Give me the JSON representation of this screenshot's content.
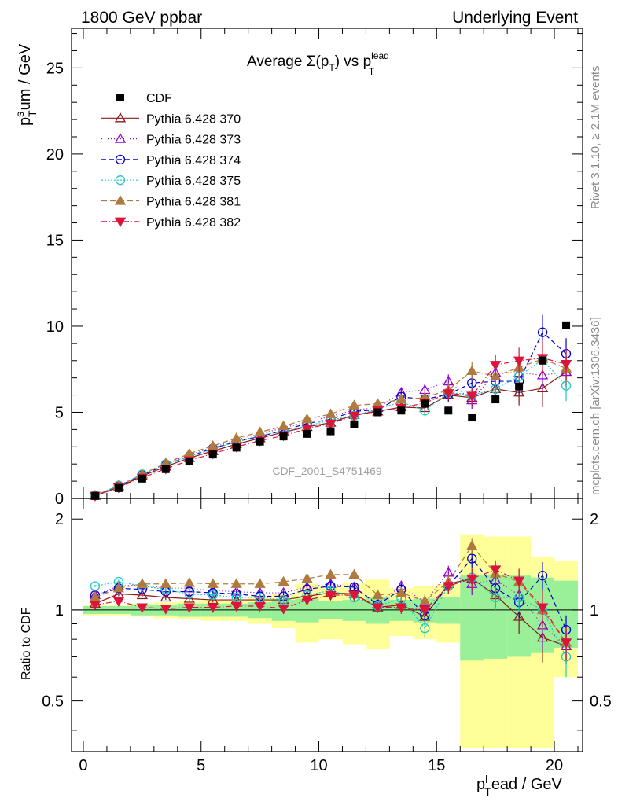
{
  "header": {
    "left": "1800 GeV ppbar",
    "right": "Underlying Event",
    "side_rivet": "Rivet 3.1.10, ≥ 2.1M events",
    "side_mcplots": "mcplots.cern.ch [arXiv:1306.3436]",
    "watermark": "CDF_2001_S4751469"
  },
  "colors": {
    "cdf": "#000000",
    "p370": "#8b1a1a",
    "p373": "#9400d3",
    "p374": "#0000cd",
    "p375": "#20c9c0",
    "p381": "#b07a3e",
    "p382": "#dc143c",
    "band_yellow": "#ffff99",
    "band_green": "#99f099"
  },
  "chart_data": [
    {
      "type": "line",
      "title": "Average Σ(p_T) vs p_T^lead",
      "title_parts": {
        "main": "Average Σ(p",
        "sub1": "T",
        "close": ") vs p",
        "sub2": "T",
        "sup": "lead"
      },
      "ylabel": "p_T^sum / GeV",
      "ylabel_parts": {
        "p": "p",
        "sup": "s",
        "sub": "T",
        "rest": "um / GeV"
      },
      "xlim": [
        -0.5,
        21.2
      ],
      "ylim": [
        0,
        27.3
      ],
      "yticks": [
        0,
        5,
        10,
        15,
        20,
        25
      ],
      "ytick_labels": [
        "0",
        "5",
        "10",
        "15",
        "20",
        "25"
      ],
      "legend": [
        "CDF",
        "Pythia 6.428 370",
        "Pythia 6.428 373",
        "Pythia 6.428 374",
        "Pythia 6.428 375",
        "Pythia 6.428 381",
        "Pythia 6.428 382"
      ],
      "x": [
        0.5,
        1.5,
        2.5,
        3.5,
        4.5,
        5.5,
        6.5,
        7.5,
        8.5,
        9.5,
        10.5,
        11.5,
        12.5,
        13.5,
        14.5,
        15.5,
        16.5,
        17.5,
        18.5,
        19.5,
        20.5
      ],
      "data": {
        "name": "CDF",
        "values": [
          0.15,
          0.6,
          1.15,
          1.7,
          2.15,
          2.55,
          2.95,
          3.3,
          3.6,
          3.75,
          3.9,
          4.3,
          5.0,
          5.1,
          5.5,
          5.1,
          4.7,
          5.75,
          6.5,
          8.0,
          10.05
        ]
      },
      "series": [
        {
          "name": "Pythia 6.428 370",
          "key": "p370",
          "marker": "triangle-open",
          "dash": "solid",
          "values": [
            0.15,
            0.65,
            1.3,
            1.85,
            2.35,
            2.75,
            3.15,
            3.5,
            3.85,
            4.15,
            4.4,
            4.85,
            5.05,
            5.3,
            5.25,
            6.0,
            5.85,
            6.35,
            6.15,
            6.4,
            7.35
          ],
          "errors": [
            0.01,
            0.02,
            0.03,
            0.04,
            0.05,
            0.06,
            0.07,
            0.08,
            0.1,
            0.12,
            0.15,
            0.18,
            0.22,
            0.27,
            0.33,
            0.4,
            0.5,
            0.6,
            0.75,
            1.1,
            0.9
          ]
        },
        {
          "name": "Pythia 6.428 373",
          "key": "p373",
          "marker": "triangle-open",
          "dash": "1 3",
          "values": [
            0.17,
            0.72,
            1.4,
            2.0,
            2.55,
            2.95,
            3.4,
            3.75,
            4.1,
            4.45,
            4.75,
            5.15,
            5.25,
            6.15,
            6.3,
            6.8,
            5.7,
            7.3,
            7.3,
            7.15,
            7.35
          ],
          "errors": [
            0.01,
            0.02,
            0.03,
            0.04,
            0.05,
            0.06,
            0.07,
            0.08,
            0.1,
            0.12,
            0.15,
            0.18,
            0.22,
            0.27,
            0.33,
            0.4,
            0.5,
            0.6,
            0.75,
            0.9,
            0.9
          ]
        },
        {
          "name": "Pythia 6.428 374",
          "key": "p374",
          "marker": "circle-open",
          "dash": "6 4",
          "values": [
            0.17,
            0.72,
            1.35,
            1.95,
            2.45,
            2.9,
            3.3,
            3.6,
            3.95,
            4.35,
            4.6,
            5.05,
            5.15,
            5.9,
            5.75,
            6.05,
            6.7,
            6.8,
            6.8,
            9.65,
            8.4
          ],
          "errors": [
            0.01,
            0.02,
            0.03,
            0.04,
            0.05,
            0.06,
            0.07,
            0.08,
            0.1,
            0.12,
            0.15,
            0.18,
            0.22,
            0.27,
            0.33,
            0.4,
            0.5,
            0.6,
            0.75,
            1.0,
            0.9
          ]
        },
        {
          "name": "Pythia 6.428 375",
          "key": "p375",
          "marker": "circle-open",
          "dash": "2 2",
          "values": [
            0.18,
            0.75,
            1.4,
            2.0,
            2.45,
            2.85,
            3.3,
            3.65,
            3.9,
            4.2,
            4.55,
            4.8,
            5.2,
            5.6,
            5.1,
            6.15,
            6.0,
            6.35,
            7.1,
            8.05,
            6.55
          ],
          "errors": [
            0.01,
            0.02,
            0.03,
            0.04,
            0.05,
            0.06,
            0.07,
            0.08,
            0.1,
            0.12,
            0.15,
            0.18,
            0.22,
            0.27,
            0.33,
            0.4,
            0.5,
            0.6,
            0.75,
            1.0,
            0.9
          ]
        },
        {
          "name": "Pythia 6.428 381",
          "key": "p381",
          "marker": "triangle-filled",
          "dash": "7 4",
          "values": [
            0.16,
            0.72,
            1.4,
            2.05,
            2.6,
            3.05,
            3.5,
            3.85,
            4.2,
            4.6,
            4.9,
            5.4,
            5.5,
            5.75,
            5.85,
            6.3,
            7.4,
            7.1,
            7.6,
            8.1,
            7.55
          ],
          "errors": [
            0.01,
            0.02,
            0.03,
            0.04,
            0.05,
            0.06,
            0.07,
            0.08,
            0.1,
            0.12,
            0.15,
            0.18,
            0.22,
            0.27,
            0.33,
            0.4,
            0.5,
            0.6,
            0.75,
            1.0,
            0.9
          ]
        },
        {
          "name": "Pythia 6.428 382",
          "key": "p382",
          "marker": "triangle-down-filled",
          "dash": "7 3 1 3",
          "values": [
            0.15,
            0.63,
            1.2,
            1.72,
            2.2,
            2.6,
            3.0,
            3.35,
            3.65,
            4.05,
            4.35,
            4.8,
            5.1,
            5.25,
            5.55,
            6.1,
            5.95,
            7.75,
            8.0,
            8.15,
            7.8
          ],
          "errors": [
            0.01,
            0.02,
            0.03,
            0.04,
            0.05,
            0.06,
            0.07,
            0.08,
            0.1,
            0.12,
            0.15,
            0.18,
            0.22,
            0.27,
            0.33,
            0.4,
            0.5,
            0.6,
            0.75,
            1.0,
            0.9
          ]
        }
      ]
    },
    {
      "type": "line",
      "ylabel": "Ratio to CDF",
      "xlabel": "p_T^lead / GeV",
      "xlabel_parts": {
        "p": "p",
        "sup": "l",
        "sub": "T",
        "rest": "ead / GeV"
      },
      "xlim": [
        -0.5,
        21.2
      ],
      "ylim": [
        0.34,
        2.34
      ],
      "xticks": [
        0,
        5,
        10,
        15,
        20
      ],
      "xtick_labels": [
        "0",
        "5",
        "10",
        "15",
        "20"
      ],
      "yticks": [
        0.5,
        1,
        2
      ],
      "ytick_labels": [
        "0.5",
        "1",
        "2"
      ],
      "reference_line": 1,
      "band_yellow": [
        [
          0.96,
          1.04
        ],
        [
          0.96,
          1.04
        ],
        [
          0.95,
          1.05
        ],
        [
          0.94,
          1.06
        ],
        [
          0.93,
          1.07
        ],
        [
          0.92,
          1.08
        ],
        [
          0.92,
          1.08
        ],
        [
          0.9,
          1.1
        ],
        [
          0.87,
          1.13
        ],
        [
          0.78,
          1.22
        ],
        [
          0.8,
          1.2
        ],
        [
          0.77,
          1.23
        ],
        [
          0.74,
          1.26
        ],
        [
          0.82,
          1.18
        ],
        [
          0.8,
          1.2
        ],
        [
          0.78,
          1.22
        ],
        [
          0.35,
          1.78
        ],
        [
          0.35,
          1.75
        ],
        [
          0.35,
          1.75
        ],
        [
          0.35,
          1.5
        ],
        [
          0.6,
          1.45
        ]
      ],
      "band_green": [
        [
          0.97,
          1.03
        ],
        [
          0.97,
          1.03
        ],
        [
          0.96,
          1.04
        ],
        [
          0.96,
          1.04
        ],
        [
          0.95,
          1.05
        ],
        [
          0.95,
          1.05
        ],
        [
          0.95,
          1.05
        ],
        [
          0.94,
          1.06
        ],
        [
          0.92,
          1.08
        ],
        [
          0.91,
          1.09
        ],
        [
          0.93,
          1.07
        ],
        [
          0.92,
          1.08
        ],
        [
          0.9,
          1.1
        ],
        [
          0.92,
          1.08
        ],
        [
          0.91,
          1.09
        ],
        [
          0.9,
          1.1
        ],
        [
          0.68,
          1.3
        ],
        [
          0.69,
          1.31
        ],
        [
          0.7,
          1.3
        ],
        [
          0.72,
          1.28
        ],
        [
          0.75,
          1.25
        ]
      ],
      "series": [
        {
          "name": "Pythia 6.428 370",
          "key": "p370",
          "values": [
            1.05,
            1.13,
            1.12,
            1.1,
            1.09,
            1.08,
            1.08,
            1.08,
            1.08,
            1.11,
            1.14,
            1.13,
            1.02,
            1.04,
            0.95,
            1.22,
            1.27,
            1.12,
            0.95,
            0.81,
            0.76
          ],
          "errors": [
            0.01,
            0.02,
            0.02,
            0.02,
            0.02,
            0.02,
            0.02,
            0.03,
            0.03,
            0.03,
            0.04,
            0.04,
            0.04,
            0.05,
            0.06,
            0.07,
            0.1,
            0.1,
            0.12,
            0.14,
            0.1
          ]
        },
        {
          "name": "Pythia 6.428 373",
          "key": "p373",
          "values": [
            1.12,
            1.2,
            1.21,
            1.18,
            1.18,
            1.16,
            1.15,
            1.14,
            1.14,
            1.19,
            1.22,
            1.19,
            1.05,
            1.2,
            1.06,
            1.33,
            1.22,
            1.26,
            1.12,
            0.89,
            0.76
          ],
          "errors": [
            0.01,
            0.02,
            0.02,
            0.02,
            0.02,
            0.02,
            0.02,
            0.03,
            0.03,
            0.03,
            0.04,
            0.04,
            0.04,
            0.05,
            0.06,
            0.07,
            0.1,
            0.1,
            0.12,
            0.14,
            0.1
          ]
        },
        {
          "name": "Pythia 6.428 374",
          "key": "p374",
          "values": [
            1.12,
            1.18,
            1.17,
            1.15,
            1.15,
            1.14,
            1.13,
            1.11,
            1.11,
            1.17,
            1.2,
            1.19,
            1.04,
            1.17,
            0.96,
            1.2,
            1.48,
            1.18,
            1.06,
            1.3,
            0.86
          ],
          "errors": [
            0.01,
            0.02,
            0.02,
            0.02,
            0.02,
            0.02,
            0.02,
            0.03,
            0.03,
            0.03,
            0.04,
            0.04,
            0.04,
            0.05,
            0.06,
            0.07,
            0.1,
            0.1,
            0.12,
            0.14,
            0.1
          ]
        },
        {
          "name": "Pythia 6.428 375",
          "key": "p375",
          "values": [
            1.2,
            1.24,
            1.2,
            1.17,
            1.13,
            1.12,
            1.1,
            1.1,
            1.08,
            1.12,
            1.16,
            1.1,
            1.03,
            1.09,
            0.87,
            1.2,
            1.28,
            1.1,
            1.1,
            1.0,
            0.7
          ],
          "errors": [
            0.01,
            0.02,
            0.02,
            0.02,
            0.02,
            0.02,
            0.02,
            0.03,
            0.03,
            0.03,
            0.04,
            0.04,
            0.04,
            0.05,
            0.06,
            0.07,
            0.1,
            0.1,
            0.12,
            0.14,
            0.1
          ]
        },
        {
          "name": "Pythia 6.428 381",
          "key": "p381",
          "values": [
            1.1,
            1.18,
            1.22,
            1.22,
            1.23,
            1.22,
            1.22,
            1.22,
            1.24,
            1.27,
            1.31,
            1.31,
            1.12,
            1.14,
            1.07,
            1.24,
            1.63,
            1.32,
            1.24,
            1.0,
            0.78
          ],
          "errors": [
            0.01,
            0.02,
            0.02,
            0.02,
            0.02,
            0.02,
            0.02,
            0.03,
            0.03,
            0.03,
            0.04,
            0.04,
            0.04,
            0.05,
            0.06,
            0.07,
            0.1,
            0.1,
            0.12,
            0.14,
            0.1
          ]
        },
        {
          "name": "Pythia 6.428 382",
          "key": "p382",
          "values": [
            1.04,
            1.07,
            1.02,
            1.01,
            1.02,
            1.02,
            1.03,
            1.03,
            1.01,
            1.08,
            1.12,
            1.12,
            1.02,
            1.02,
            1.0,
            1.2,
            1.27,
            1.36,
            1.25,
            1.02,
            0.78
          ],
          "errors": [
            0.01,
            0.02,
            0.02,
            0.02,
            0.02,
            0.02,
            0.02,
            0.03,
            0.03,
            0.03,
            0.04,
            0.04,
            0.04,
            0.05,
            0.06,
            0.07,
            0.1,
            0.1,
            0.12,
            0.14,
            0.1
          ]
        }
      ]
    }
  ]
}
